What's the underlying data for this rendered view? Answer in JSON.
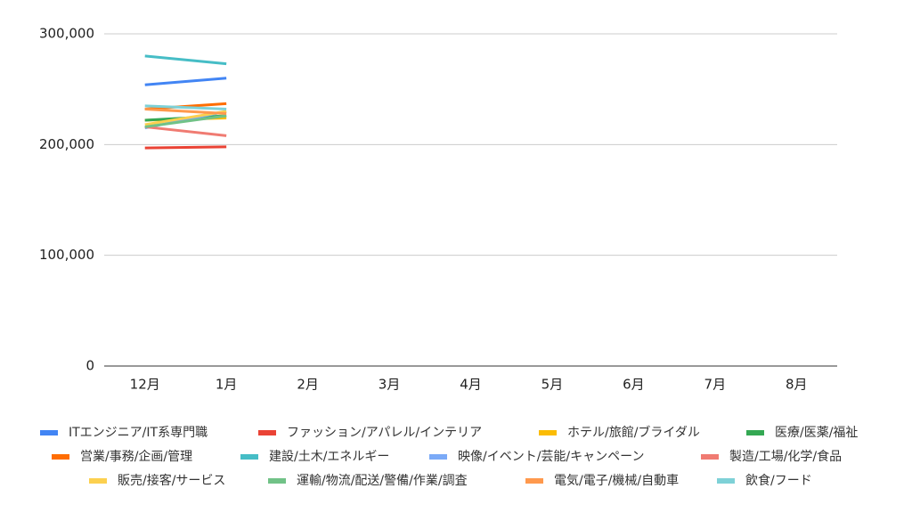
{
  "chart_data": {
    "type": "line",
    "categories": [
      "12月",
      "1月",
      "2月",
      "3月",
      "4月",
      "5月",
      "6月",
      "7月",
      "8月"
    ],
    "series": [
      {
        "name": "ITエンジニア/IT系専門職",
        "color": "#4285f4",
        "values": [
          254000,
          260000,
          null,
          null,
          null,
          null,
          null,
          null,
          null
        ]
      },
      {
        "name": "ファッション/アパレル/インテリア",
        "color": "#ea4335",
        "values": [
          197000,
          198000,
          null,
          null,
          null,
          null,
          null,
          null,
          null
        ]
      },
      {
        "name": "ホテル/旅館/ブライダル",
        "color": "#fbbc04",
        "values": [
          222000,
          224000,
          null,
          null,
          null,
          null,
          null,
          null,
          null
        ]
      },
      {
        "name": "医療/医薬/福祉",
        "color": "#34a853",
        "values": [
          222000,
          226000,
          null,
          null,
          null,
          null,
          null,
          null,
          null
        ]
      },
      {
        "name": "営業/事務/企画/管理",
        "color": "#ff6d01",
        "values": [
          232000,
          237000,
          null,
          null,
          null,
          null,
          null,
          null,
          null
        ]
      },
      {
        "name": "建設/土木/エネルギー",
        "color": "#46bdc6",
        "values": [
          280000,
          273000,
          null,
          null,
          null,
          null,
          null,
          null,
          null
        ]
      },
      {
        "name": "映像/イベント/芸能/キャンペーン",
        "color": "#7baaf7",
        "values": [
          215000,
          230000,
          null,
          null,
          null,
          null,
          null,
          null,
          null
        ]
      },
      {
        "name": "製造/工場/化学/食品",
        "color": "#f07b72",
        "values": [
          216000,
          208000,
          null,
          null,
          null,
          null,
          null,
          null,
          null
        ]
      },
      {
        "name": "販売/接客/サービス",
        "color": "#fcd04f",
        "values": [
          218000,
          230000,
          null,
          null,
          null,
          null,
          null,
          null,
          null
        ]
      },
      {
        "name": "運輸/物流/配送/警備/作業/調査",
        "color": "#71c287",
        "values": [
          216000,
          226000,
          null,
          null,
          null,
          null,
          null,
          null,
          null
        ]
      },
      {
        "name": "電気/電子/機械/自動車",
        "color": "#ff994d",
        "values": [
          232000,
          228000,
          null,
          null,
          null,
          null,
          null,
          null,
          null
        ]
      },
      {
        "name": "飲食/フード",
        "color": "#7ed1d7",
        "values": [
          235000,
          232000,
          null,
          null,
          null,
          null,
          null,
          null,
          null
        ]
      }
    ],
    "ylim": [
      0,
      300000
    ],
    "yticks": [
      0,
      {
        "value": 100000,
        "label": "100,000"
      },
      {
        "value": 200000,
        "label": "200,000"
      },
      {
        "value": 300000,
        "label": "300,000"
      }
    ],
    "grid": true
  }
}
